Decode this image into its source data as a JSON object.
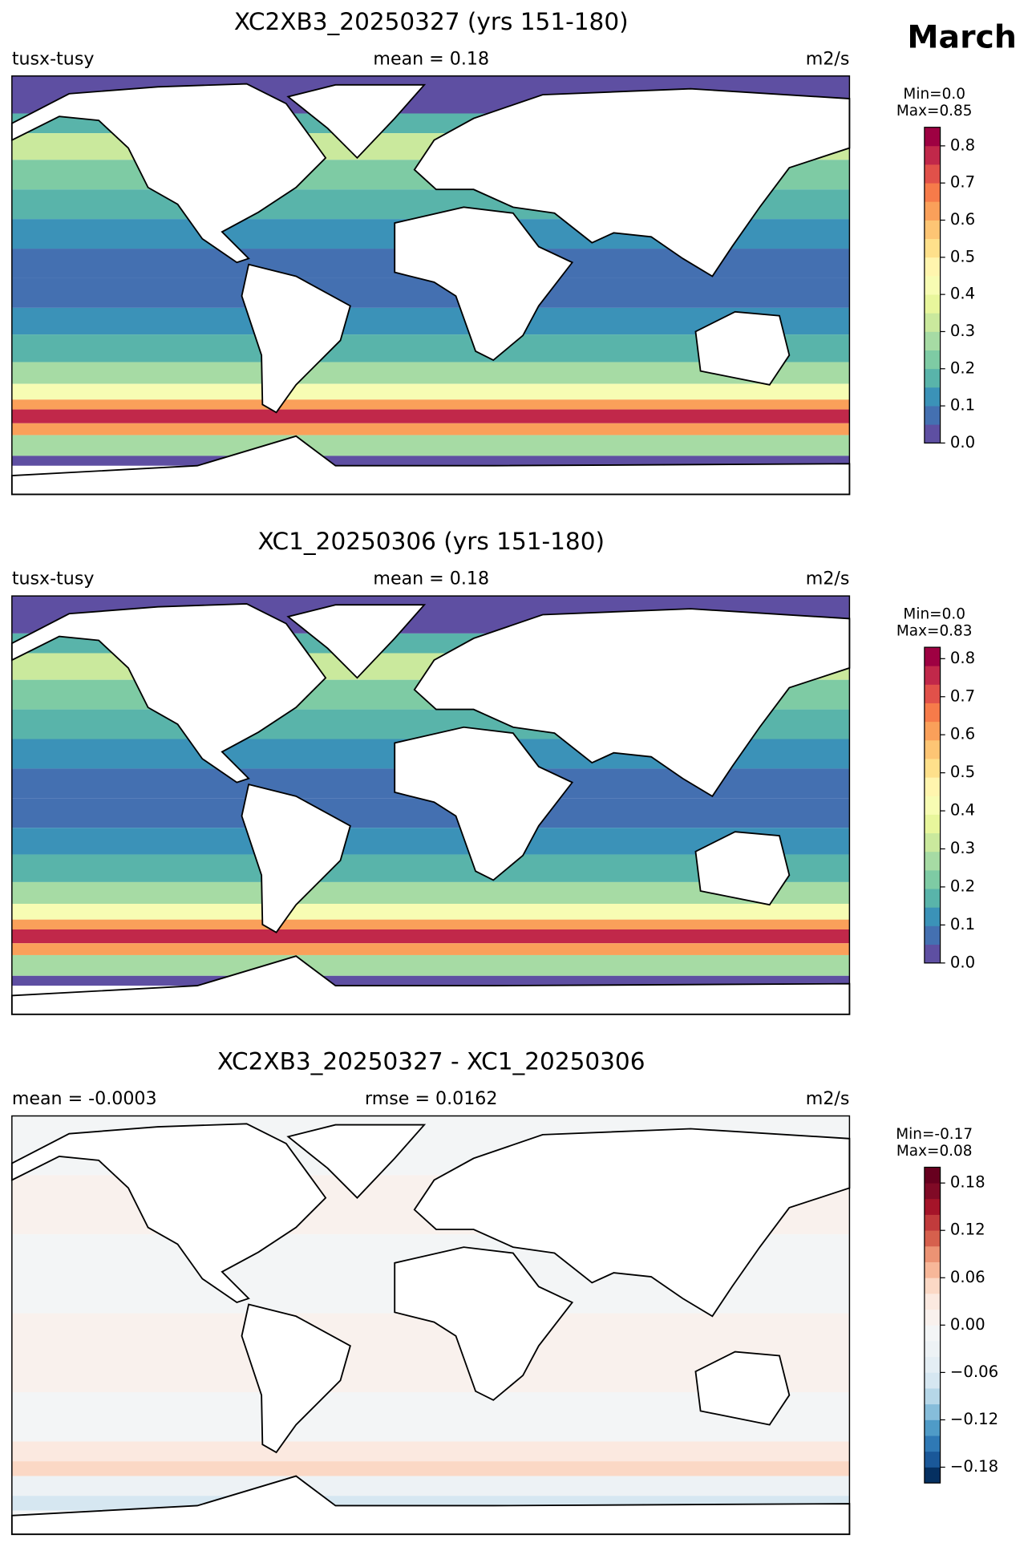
{
  "figure_title": "March",
  "panels": [
    {
      "title": "XC2XB3_20250327 (yrs 151-180)",
      "left_label": "tusx-tusy",
      "center_label": "mean = 0.18",
      "right_label": "m2/s",
      "stats": [
        "Min=0.0",
        "Max=0.85"
      ],
      "colorbar": {
        "lim": [
          0,
          0.85
        ],
        "ticks": [
          {
            "value": 0,
            "label": "0.0"
          },
          0.1,
          0.2,
          0.3,
          0.4,
          0.5,
          0.6,
          0.7,
          0.8
        ],
        "colors": [
          "#5e4fa2",
          "#4470b1",
          "#3b92b8",
          "#59b4aa",
          "#7ecba4",
          "#a6dba4",
          "#cae99d",
          "#e8f69c",
          "#f7fcb3",
          "#fff5ae",
          "#fee08b",
          "#fdc574",
          "#faa05a",
          "#f67b4a",
          "#e1514a",
          "#c1284a",
          "#9e0142"
        ]
      }
    },
    {
      "title": "XC1_20250306 (yrs 151-180)",
      "left_label": "tusx-tusy",
      "center_label": "mean = 0.18",
      "right_label": "m2/s",
      "stats": [
        "Min=0.0",
        "Max=0.83"
      ],
      "colorbar": {
        "lim": [
          0,
          0.83
        ],
        "ticks": [
          {
            "value": 0,
            "label": "0.0"
          },
          0.1,
          0.2,
          0.3,
          0.4,
          0.5,
          0.6,
          0.7,
          0.8
        ],
        "colors": [
          "#5e4fa2",
          "#4470b1",
          "#3b92b8",
          "#59b4aa",
          "#7ecba4",
          "#a6dba4",
          "#cae99d",
          "#e8f69c",
          "#f7fcb3",
          "#fff5ae",
          "#fee08b",
          "#fdc574",
          "#faa05a",
          "#f67b4a",
          "#e1514a",
          "#c1284a",
          "#9e0142"
        ]
      }
    },
    {
      "title": "XC2XB3_20250327 - XC1_20250306",
      "left_label": "mean = -0.0003",
      "center_label": "rmse = 0.0162",
      "right_label": "m2/s",
      "stats": [
        "Min=-0.17",
        "Max=0.08"
      ],
      "colorbar": {
        "lim": [
          -0.2,
          0.2
        ],
        "ticks": [
          {
            "value": -0.18,
            "label": "−0.18"
          },
          {
            "value": -0.12,
            "label": "−0.12"
          },
          {
            "value": -0.06,
            "label": "−0.06"
          },
          {
            "value": 0,
            "label": "0.00"
          },
          0.06,
          0.12,
          0.18
        ],
        "colors": [
          "#053061",
          "#1a5899",
          "#2f79b5",
          "#4f9bc7",
          "#86bdda",
          "#b6d7e8",
          "#d6e7f1",
          "#e4eef4",
          "#edf2f5",
          "#f3f5f6",
          "#f9f1ed",
          "#fbe9e0",
          "#fbd8c5",
          "#f7b799",
          "#ec9374",
          "#d6604d",
          "#c13b3c",
          "#a51429",
          "#800a26",
          "#67001f"
        ]
      }
    }
  ]
}
